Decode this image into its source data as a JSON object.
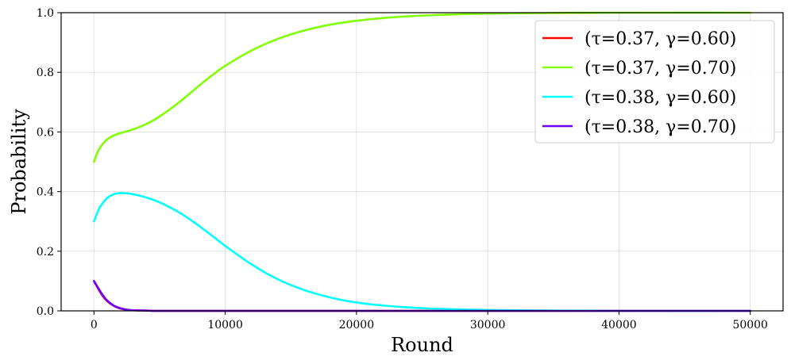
{
  "chart_data": {
    "type": "line",
    "title": "",
    "xlabel": "Round",
    "ylabel": "Probability",
    "xlim": [
      -2500,
      52500
    ],
    "ylim": [
      0,
      1.0
    ],
    "xticks": [
      0,
      10000,
      20000,
      30000,
      40000,
      50000
    ],
    "xtick_labels": [
      "0",
      "10000",
      "20000",
      "30000",
      "40000",
      "50000"
    ],
    "yticks": [
      0.0,
      0.2,
      0.4,
      0.6,
      0.8,
      1.0
    ],
    "ytick_labels": [
      "0.0",
      "0.2",
      "0.4",
      "0.6",
      "0.8",
      "1.0"
    ],
    "grid": true,
    "legend_position": "top-right",
    "series": [
      {
        "name": "(τ=0.37, γ=0.60)",
        "color": "#ff0000",
        "x": [
          0,
          250,
          500,
          750,
          1000,
          1500,
          2000,
          2500,
          3000,
          4000,
          5000,
          10000,
          20000,
          30000,
          40000,
          50000
        ],
        "y": [
          0.1,
          0.08,
          0.061,
          0.045,
          0.033,
          0.017,
          0.008,
          0.004,
          0.002,
          0.001,
          0.0,
          0.0,
          0.0,
          0.0,
          0.0,
          0.0
        ]
      },
      {
        "name": "(τ=0.37, γ=0.70)",
        "color": "#80ff00",
        "x": [
          0,
          250,
          500,
          1000,
          1500,
          2000,
          3000,
          4000,
          5000,
          6000,
          7000,
          8000,
          9000,
          10000,
          12000,
          14000,
          16000,
          18000,
          20000,
          22000,
          24000,
          26000,
          28000,
          30000,
          35000,
          40000,
          50000
        ],
        "y": [
          0.5,
          0.53,
          0.55,
          0.575,
          0.588,
          0.596,
          0.609,
          0.627,
          0.652,
          0.683,
          0.718,
          0.755,
          0.79,
          0.822,
          0.873,
          0.912,
          0.94,
          0.96,
          0.973,
          0.982,
          0.988,
          0.992,
          0.995,
          0.997,
          0.999,
          1.0,
          1.0
        ]
      },
      {
        "name": "(τ=0.38, γ=0.60)",
        "color": "#00ffff",
        "x": [
          0,
          250,
          500,
          1000,
          1500,
          2000,
          2500,
          3000,
          4000,
          5000,
          6000,
          7000,
          8000,
          9000,
          10000,
          12000,
          14000,
          16000,
          18000,
          20000,
          22000,
          25000,
          30000,
          35000,
          40000,
          50000
        ],
        "y": [
          0.3,
          0.328,
          0.351,
          0.378,
          0.391,
          0.395,
          0.394,
          0.391,
          0.38,
          0.364,
          0.342,
          0.316,
          0.285,
          0.252,
          0.218,
          0.156,
          0.106,
          0.07,
          0.045,
          0.028,
          0.018,
          0.009,
          0.003,
          0.001,
          0.0,
          0.0
        ]
      },
      {
        "name": "(τ=0.38, γ=0.70)",
        "color": "#6a00ff",
        "x": [
          0,
          250,
          500,
          750,
          1000,
          1500,
          2000,
          2500,
          3000,
          4000,
          5000,
          10000,
          20000,
          30000,
          40000,
          50000
        ],
        "y": [
          0.1,
          0.082,
          0.064,
          0.048,
          0.035,
          0.018,
          0.009,
          0.004,
          0.002,
          0.001,
          0.0,
          0.0,
          0.0,
          0.0,
          0.0,
          0.0
        ]
      }
    ]
  }
}
